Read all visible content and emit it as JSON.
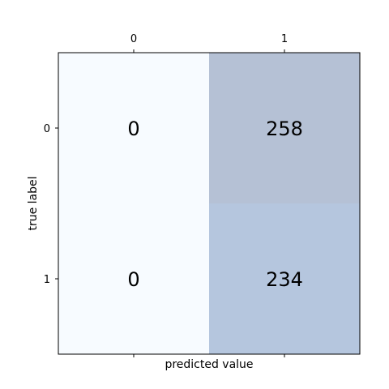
{
  "chart_data": {
    "type": "heatmap",
    "title": "",
    "xlabel": "predicted value",
    "ylabel": "true label",
    "x_categories": [
      "0",
      "1"
    ],
    "y_categories": [
      "0",
      "1"
    ],
    "values": [
      [
        0,
        258
      ],
      [
        0,
        234
      ]
    ],
    "value_labels": [
      [
        "0",
        "258"
      ],
      [
        "0",
        "234"
      ]
    ],
    "colors": {
      "min": "#f7fbff",
      "max": "#b5c1d5",
      "mid": "#b5c6de",
      "frame": "#000000"
    },
    "x_ticks_position": "top",
    "grid": false,
    "legend": "none"
  }
}
